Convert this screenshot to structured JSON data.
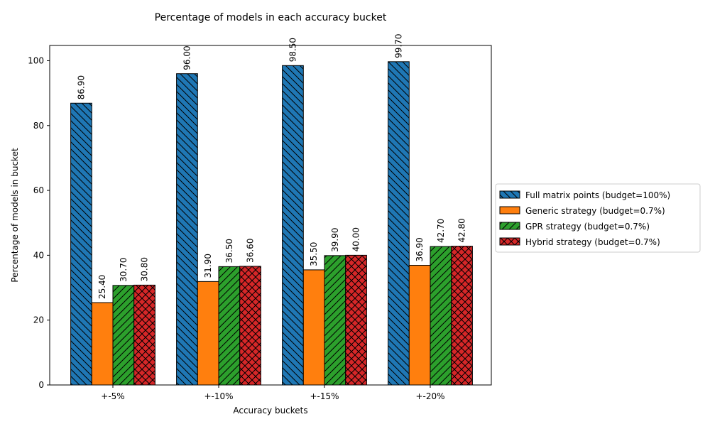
{
  "chart_data": {
    "type": "bar",
    "title": "Percentage of models in each accuracy bucket",
    "xlabel": "Accuracy buckets",
    "ylabel": "Percentage of models in bucket",
    "categories": [
      "+-5%",
      "+-10%",
      "+-15%",
      "+-20%"
    ],
    "ylim": [
      0,
      104.7
    ],
    "yticks": [
      "0",
      "20",
      "40",
      "60",
      "80",
      "100"
    ],
    "ytick_values": [
      0,
      20,
      40,
      60,
      80,
      100
    ],
    "grid": false,
    "legend_position": "right",
    "series": [
      {
        "name": "Full matrix points (budget=100%)",
        "values": [
          86.9,
          96.0,
          98.5,
          99.7
        ],
        "labels": [
          "86.90",
          "96.00",
          "98.50",
          "99.70"
        ],
        "color": "#1f77b4",
        "hatch": "backslash"
      },
      {
        "name": "Generic strategy (budget=0.7%)",
        "values": [
          25.4,
          31.9,
          35.5,
          36.9
        ],
        "labels": [
          "25.40",
          "31.90",
          "35.50",
          "36.90"
        ],
        "color": "#ff7f0e",
        "hatch": "none"
      },
      {
        "name": "GPR strategy (budget=0.7%)",
        "values": [
          30.7,
          36.5,
          39.9,
          42.7
        ],
        "labels": [
          "30.70",
          "36.50",
          "39.90",
          "42.70"
        ],
        "color": "#2ca02c",
        "hatch": "slash"
      },
      {
        "name": "Hybrid strategy (budget=0.7%)",
        "values": [
          30.8,
          36.6,
          40.0,
          42.8
        ],
        "labels": [
          "30.80",
          "36.60",
          "40.00",
          "42.80"
        ],
        "color": "#d62728",
        "hatch": "cross"
      }
    ]
  }
}
